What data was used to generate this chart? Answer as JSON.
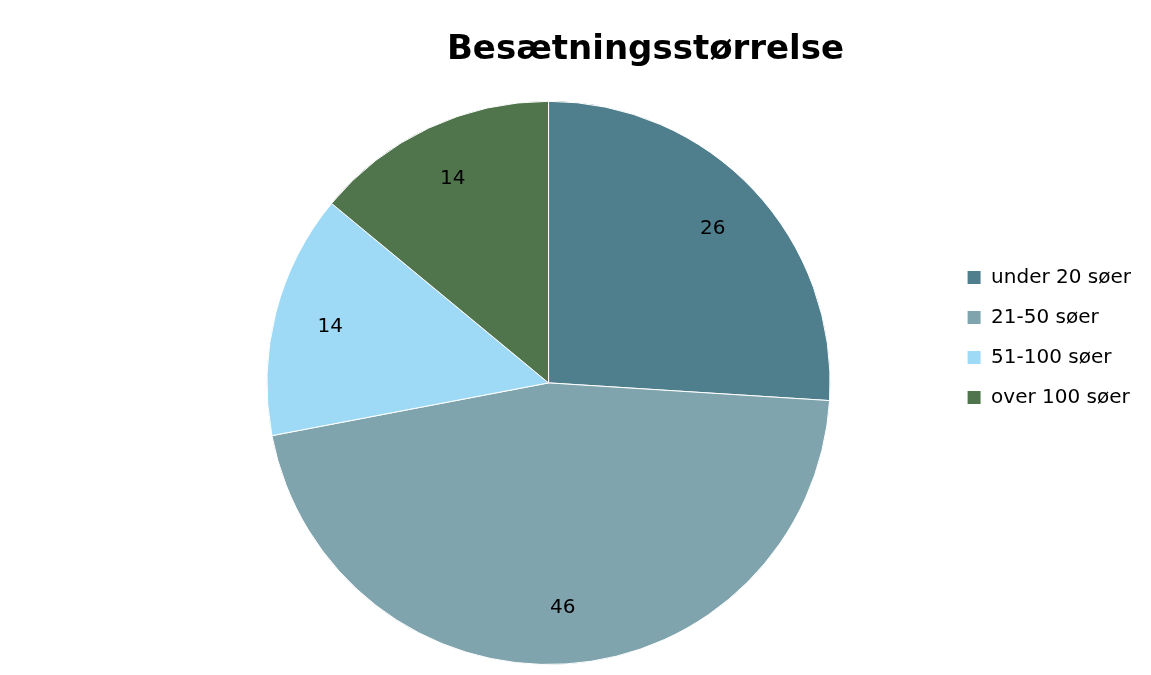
{
  "chart_data": {
    "type": "pie",
    "title": "Besætningsstørrelse",
    "categories": [
      "under 20 søer",
      "21-50 søer",
      "51-100 søer",
      "over 100 søer"
    ],
    "values": [
      26,
      46,
      14,
      14
    ],
    "colors": [
      "#4f7f8d",
      "#7fa4ad",
      "#9edaf5",
      "#50744c"
    ],
    "data_labels": true,
    "legend": "right"
  }
}
